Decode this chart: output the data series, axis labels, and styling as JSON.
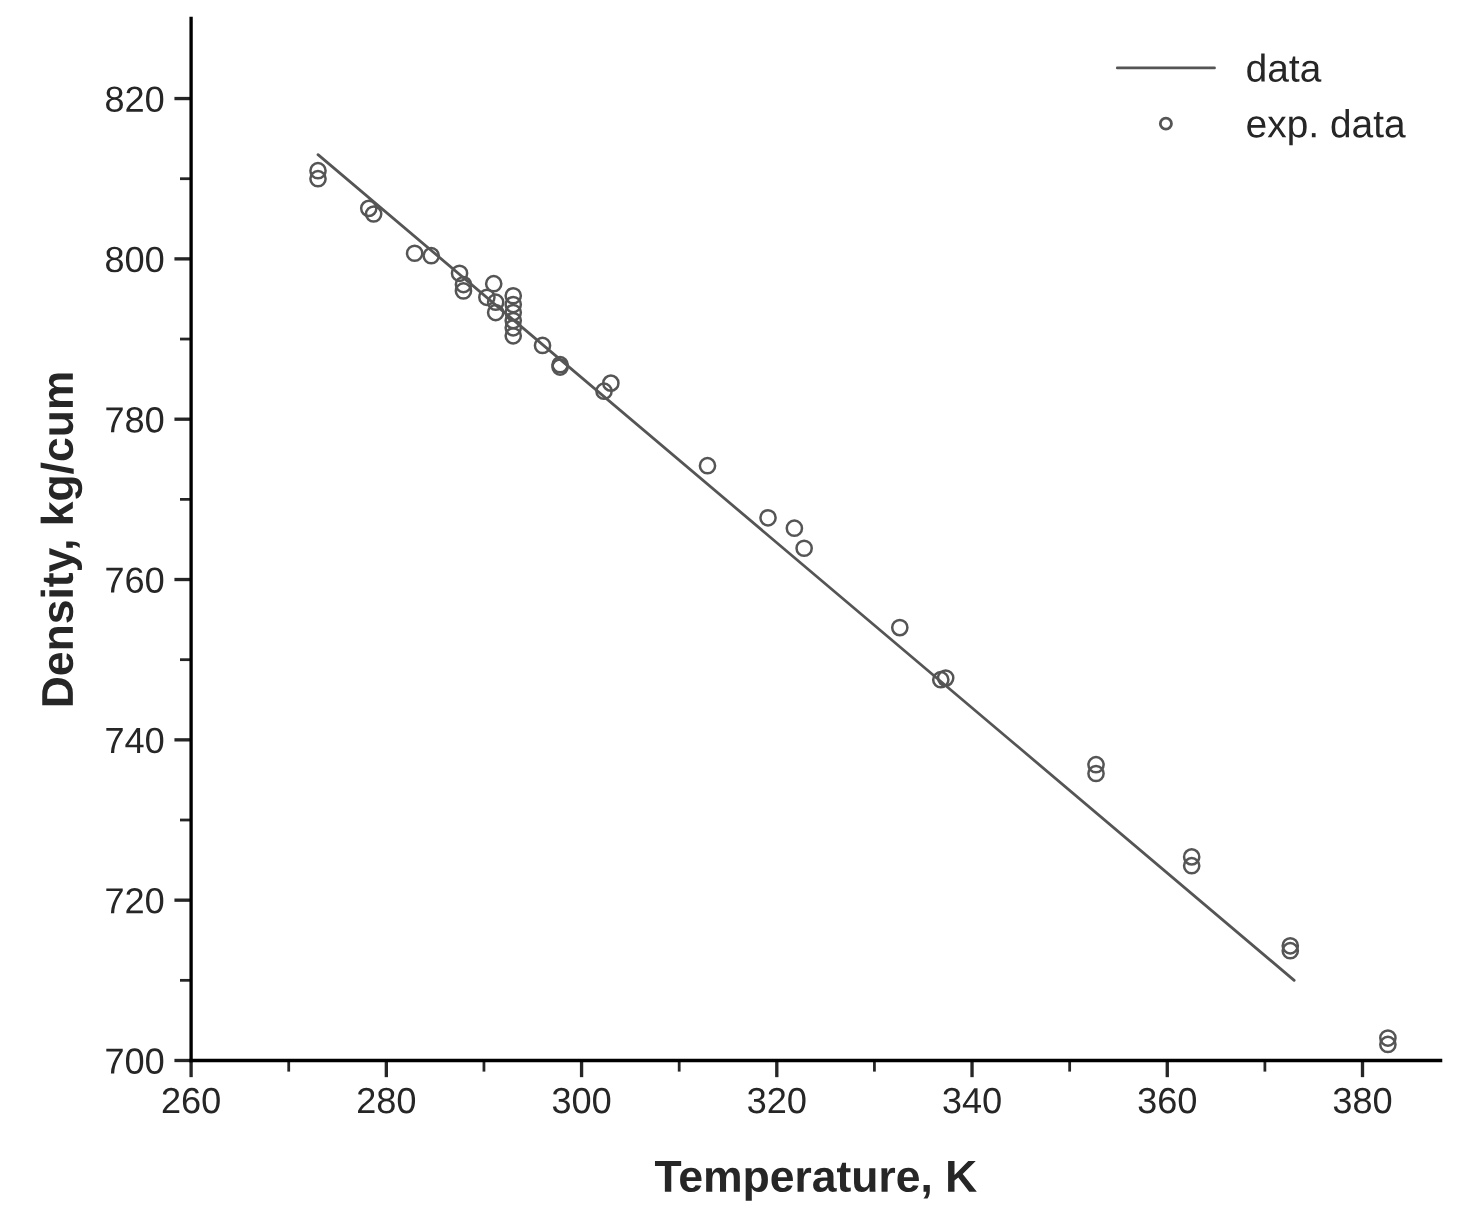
{
  "chart_data": {
    "type": "scatter",
    "xlabel": "Temperature, K",
    "ylabel": "Density, kg/cum",
    "xlim": [
      260,
      388
    ],
    "xticks": [
      260,
      280,
      300,
      320,
      340,
      360,
      380
    ],
    "ylim": [
      700,
      830
    ],
    "yticks": [
      700,
      720,
      740,
      760,
      780,
      800,
      820
    ],
    "grid": false,
    "legend": "top right",
    "series": [
      {
        "name": "data",
        "type": "line",
        "color": "#555555",
        "line_style": "solid",
        "marker": "none",
        "x": [
          273,
          373
        ],
        "values": [
          813,
          710
        ]
      },
      {
        "name": "exp. data",
        "color": "#555555",
        "marker": "circle",
        "x": [
          273,
          273,
          278.2,
          278.7,
          282.9,
          284.6,
          287.5,
          287.9,
          287.9,
          291,
          290.3,
          291.2,
          291.2,
          293,
          293,
          293,
          293,
          293,
          293,
          296,
          297.8,
          297.8,
          302.3,
          303,
          312.9,
          319.1,
          321.8,
          322.8,
          332.6,
          336.8,
          337.3,
          352.7,
          352.7,
          362.5,
          362.5,
          372.6,
          372.6,
          382.6,
          382.6
        ],
        "values": [
          811.0,
          810.0,
          806.3,
          805.6,
          800.7,
          800.4,
          798.2,
          796.8,
          796.0,
          796.9,
          795.2,
          794.6,
          793.3,
          795.4,
          794.3,
          793.3,
          792.3,
          791.4,
          790.4,
          789.2,
          786.8,
          786.5,
          783.5,
          784.5,
          774.2,
          767.7,
          766.4,
          763.9,
          754.0,
          747.5,
          747.7,
          736.9,
          735.8,
          725.4,
          724.3,
          714.3,
          713.7,
          702.8,
          702.0
        ]
      }
    ]
  }
}
